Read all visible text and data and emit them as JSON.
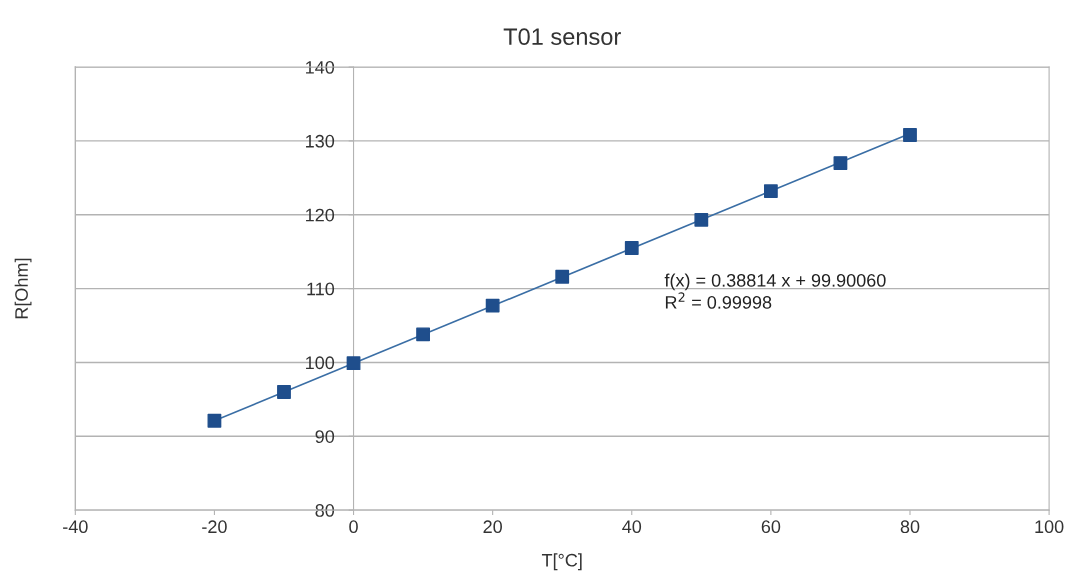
{
  "chart_data": {
    "type": "scatter",
    "title": "T01 sensor",
    "xlabel": "T[°C]",
    "ylabel": "R[Ohm]",
    "x": [
      -20,
      -10,
      0,
      10,
      20,
      30,
      40,
      50,
      60,
      70,
      80
    ],
    "series": [
      {
        "color": "#1f4e8c",
        "marker": "square",
        "values": [
          92.1,
          96.0,
          99.9,
          103.8,
          107.7,
          111.6,
          115.5,
          119.3,
          123.2,
          127.0,
          130.8
        ]
      },
      {
        "type": "line",
        "color": "#3a6ea5",
        "x": [
          -20,
          80
        ],
        "values": [
          92.1,
          131.0
        ]
      }
    ],
    "xlim": [
      -40,
      100
    ],
    "xticks": [
      -40,
      -20,
      0,
      20,
      40,
      60,
      80,
      100
    ],
    "ylim": [
      80,
      140
    ],
    "yticks": [
      80,
      90,
      100,
      110,
      120,
      130,
      140
    ],
    "grid": "y",
    "annotations": [
      "f(x) = 0.38814 x + 99.90060",
      "R$^{2}$ = 0.99998"
    ]
  }
}
